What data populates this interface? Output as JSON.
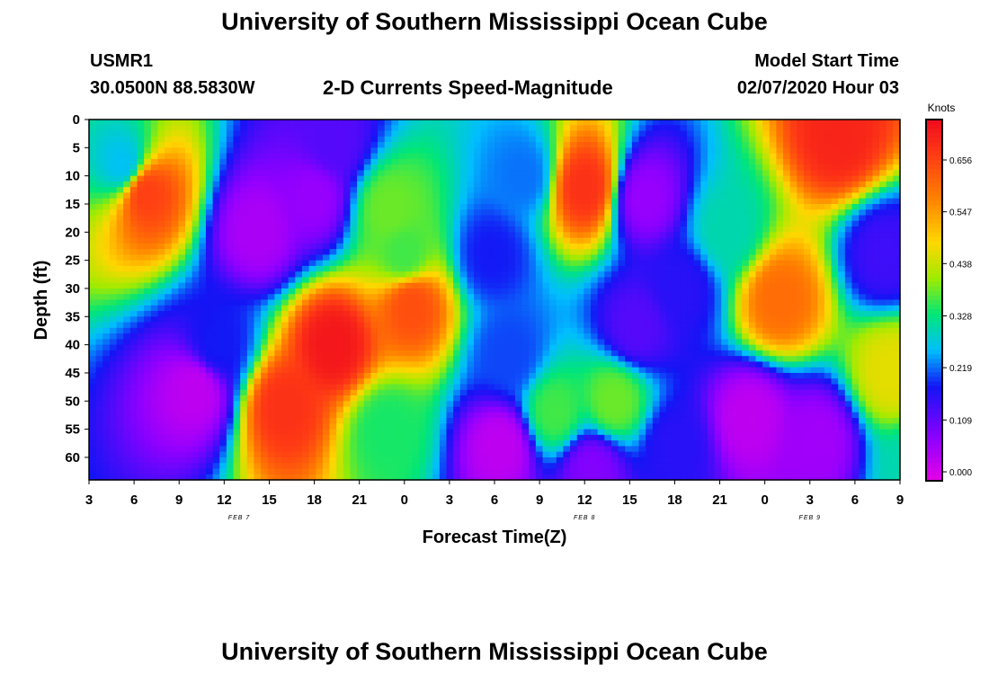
{
  "page": {
    "title_top": "University of Southern Mississippi Ocean Cube",
    "title_bottom": "University of Southern Mississippi Ocean Cube",
    "station": "USMR1",
    "coords": "30.0500N 88.5830W",
    "subtitle": "2-D Currents Speed-Magnitude",
    "model_label": "Model Start Time",
    "model_time": "02/07/2020 Hour 03"
  },
  "chart_data": {
    "type": "heatmap",
    "title": "2-D Currents Speed-Magnitude",
    "xlabel": "Forecast Time(Z)",
    "ylabel": "Depth (ft)",
    "x_hours_range": [
      0,
      54
    ],
    "x_tick_labels": [
      "3",
      "6",
      "9",
      "12",
      "15",
      "18",
      "21",
      "0",
      "3",
      "6",
      "9",
      "12",
      "15",
      "18",
      "21",
      "0",
      "3",
      "6",
      "9"
    ],
    "date_labels": [
      {
        "label": "FEB 7",
        "hour": 10
      },
      {
        "label": "FEB 8",
        "hour": 33
      },
      {
        "label": "FEB 9",
        "hour": 48
      }
    ],
    "y_range": [
      0,
      64
    ],
    "y_ticks": [
      0,
      5,
      10,
      15,
      20,
      25,
      30,
      35,
      40,
      45,
      50,
      55,
      60
    ],
    "colorbar": {
      "label": "Knots",
      "ticks": [
        "0.000",
        "0.109",
        "0.219",
        "0.328",
        "0.438",
        "0.547",
        "0.656"
      ],
      "range": [
        0,
        0.76
      ]
    },
    "speed_features": [
      {
        "hour": 3.8,
        "depth": 13,
        "speed": 0.68
      },
      {
        "hour": 2.3,
        "depth": 8,
        "speed": 0.28
      },
      {
        "hour": 7.1,
        "depth": 48,
        "speed": 0.04
      },
      {
        "hour": 8.6,
        "depth": 40,
        "speed": 0.2
      },
      {
        "hour": 11.3,
        "depth": 20,
        "speed": 0.06
      },
      {
        "hour": 15.0,
        "depth": 14,
        "speed": 0.08
      },
      {
        "hour": 16.3,
        "depth": 4,
        "speed": 0.14
      },
      {
        "hour": 20.0,
        "depth": 16,
        "speed": 0.4
      },
      {
        "hour": 21.0,
        "depth": 24,
        "speed": 0.38
      },
      {
        "hour": 16.3,
        "depth": 40,
        "speed": 0.74
      },
      {
        "hour": 13.0,
        "depth": 51,
        "speed": 0.7
      },
      {
        "hour": 21.5,
        "depth": 33,
        "speed": 0.66
      },
      {
        "hour": 19.8,
        "depth": 55,
        "speed": 0.36
      },
      {
        "hour": 27.5,
        "depth": 58,
        "speed": 0.04
      },
      {
        "hour": 26.8,
        "depth": 24,
        "speed": 0.2
      },
      {
        "hour": 29.0,
        "depth": 10,
        "speed": 0.24
      },
      {
        "hour": 28.0,
        "depth": 42,
        "speed": 0.22
      },
      {
        "hour": 33.0,
        "depth": 12,
        "speed": 0.7
      },
      {
        "hour": 31.0,
        "depth": 52,
        "speed": 0.38
      },
      {
        "hour": 35.0,
        "depth": 50,
        "speed": 0.4
      },
      {
        "hour": 33.5,
        "depth": 62,
        "speed": 0.1
      },
      {
        "hour": 37.0,
        "depth": 14,
        "speed": 0.08
      },
      {
        "hour": 36.5,
        "depth": 37,
        "speed": 0.14
      },
      {
        "hour": 39.5,
        "depth": 30,
        "speed": 0.18
      },
      {
        "hour": 39.0,
        "depth": 58,
        "speed": 0.18
      },
      {
        "hour": 42.5,
        "depth": 20,
        "speed": 0.32
      },
      {
        "hour": 46.0,
        "depth": 32,
        "speed": 0.62
      },
      {
        "hour": 44.0,
        "depth": 53,
        "speed": 0.04
      },
      {
        "hour": 48.5,
        "depth": 57,
        "speed": 0.07
      },
      {
        "hour": 50.0,
        "depth": 3,
        "speed": 0.72
      },
      {
        "hour": 53.0,
        "depth": 24,
        "speed": 0.16
      },
      {
        "hour": 53.5,
        "depth": 45,
        "speed": 0.48
      },
      {
        "hour": 55.0,
        "depth": 62,
        "speed": 0.32
      }
    ]
  }
}
